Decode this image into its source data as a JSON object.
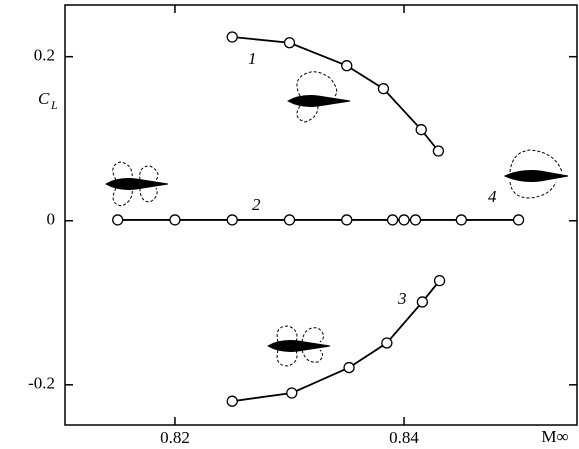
{
  "chart_data": {
    "type": "line",
    "xlabel": "M∞",
    "ylabel": "C",
    "ylabel_subscript": "L",
    "annotations": [
      "1",
      "2",
      "3",
      "4"
    ],
    "xlim": [
      0.8104,
      0.8551
    ],
    "ylim": [
      -0.249,
      0.263
    ],
    "xticks": [
      0.82,
      0.84
    ],
    "yticks": [
      -0.2,
      0,
      0.2
    ],
    "color": "#000000",
    "series": [
      {
        "x": [
          0.825,
          0.83,
          0.835,
          0.8382,
          0.8415,
          0.843
        ],
        "values": [
          0.224,
          0.217,
          0.189,
          0.161,
          0.111,
          0.085
        ]
      },
      {
        "x": [
          0.815,
          0.82,
          0.825,
          0.83,
          0.835,
          0.839,
          0.84,
          0.841,
          0.845,
          0.85
        ],
        "values": [
          0.001,
          0.001,
          0.001,
          0.001,
          0.001,
          0.001,
          0.001,
          0.001,
          0.001,
          0.001
        ]
      },
      {
        "x": [
          0.825,
          0.8302,
          0.8352,
          0.8385,
          0.8416,
          0.8431
        ],
        "values": [
          -0.22,
          -0.21,
          -0.179,
          -0.149,
          -0.099,
          -0.073
        ]
      }
    ]
  }
}
